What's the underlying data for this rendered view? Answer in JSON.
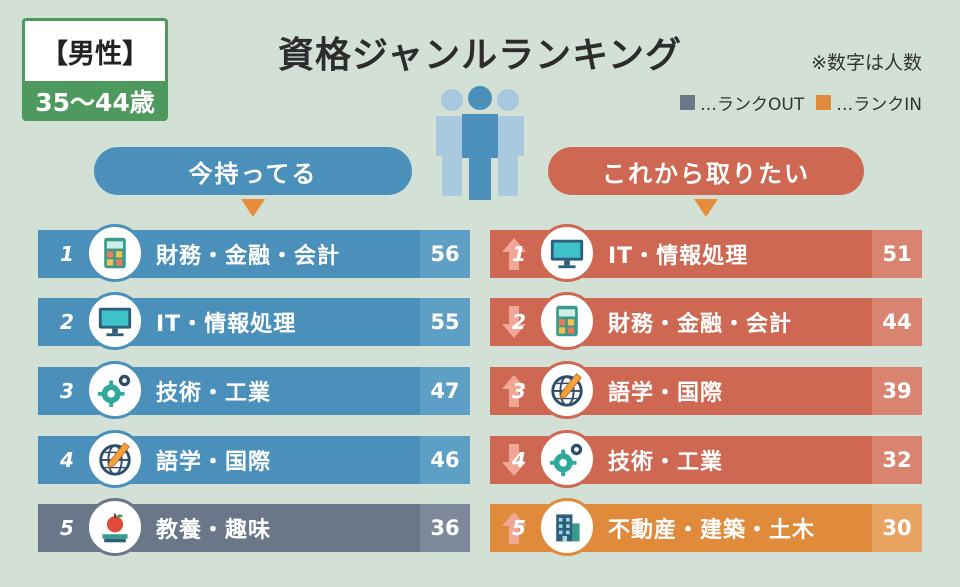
{
  "badge": {
    "gender": "【男性】",
    "age": "35～44歳"
  },
  "title": "資格ジャンルランキング",
  "note": "※数字は人数",
  "legend": [
    {
      "label": "…ランクOUT",
      "color": "#6a7788"
    },
    {
      "label": "…ランクIN",
      "color": "#e08a3c"
    }
  ],
  "chart_data": [
    {
      "type": "bar",
      "title": "今持ってる",
      "categories": [
        "財務・金融・会計",
        "IT・情報処理",
        "技術・工業",
        "語学・国際",
        "教養・趣味"
      ],
      "values": [
        56,
        55,
        47,
        46,
        36
      ],
      "ranks": [
        "1",
        "2",
        "3",
        "4",
        "5"
      ],
      "status": [
        "same",
        "same",
        "same",
        "same",
        "out"
      ],
      "icons": [
        "calculator-icon",
        "monitor-icon",
        "gears-icon",
        "globe-pen-icon",
        "books-apple-icon"
      ]
    },
    {
      "type": "bar",
      "title": "これから取りたい",
      "categories": [
        "IT・情報処理",
        "財務・金融・会計",
        "語学・国際",
        "技術・工業",
        "不動産・建築・土木"
      ],
      "values": [
        51,
        44,
        39,
        32,
        30
      ],
      "ranks": [
        "1",
        "2",
        "3",
        "4",
        "5"
      ],
      "status": [
        "up",
        "down",
        "up",
        "down",
        "in"
      ],
      "icons": [
        "monitor-icon",
        "calculator-icon",
        "globe-pen-icon",
        "gears-icon",
        "building-icon"
      ]
    }
  ],
  "colors": {
    "blue": "#4b90bb",
    "blue_box": "#5e9fc6",
    "red": "#cf6852",
    "red_box": "#d98470",
    "out": "#6a7788",
    "out_box": "#7d899a",
    "in": "#e08a3c",
    "in_box": "#e8a261",
    "green": "#4e9a5e"
  }
}
